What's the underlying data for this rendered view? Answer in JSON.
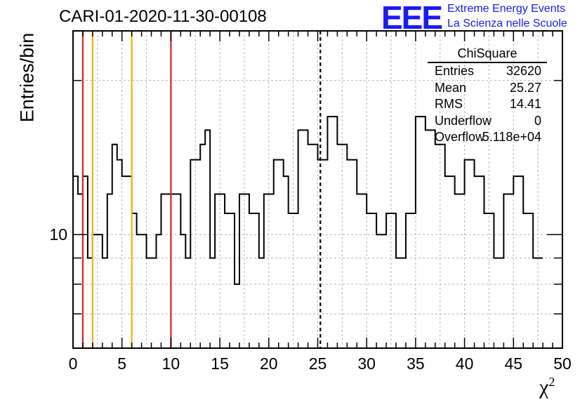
{
  "title": "CARI-01-2020-11-30-00108",
  "logo": {
    "mark": "EEE",
    "line1": "Extreme Energy Events",
    "line2": "La Scienza nelle Scuole"
  },
  "stats": {
    "title": "ChiSquare",
    "rows": [
      {
        "key": "Entries",
        "value": "32620"
      },
      {
        "key": "Mean",
        "value": "25.27"
      },
      {
        "key": "RMS",
        "value": "14.41"
      },
      {
        "key": "Underflow",
        "value": "0"
      },
      {
        "key": "Overflow",
        "value": "5.118e+04"
      }
    ]
  },
  "chart_data": {
    "type": "histogram",
    "xlabel": "χ²",
    "ylabel": "Entries/bin",
    "xlim": [
      0,
      50
    ],
    "ylim": [
      6,
      25
    ],
    "log_y": true,
    "grid": true,
    "bin_width": 0.5,
    "x_ticks": [
      "0",
      "5",
      "10",
      "15",
      "20",
      "25",
      "30",
      "35",
      "40",
      "45",
      "50"
    ],
    "y_tick_labels": [
      {
        "value": 10,
        "label": "10"
      }
    ],
    "values": [
      13,
      12,
      13,
      9,
      10,
      10,
      9,
      12,
      15,
      14,
      13,
      13,
      11,
      10,
      10,
      9,
      9,
      10,
      12,
      12,
      12,
      12,
      10,
      9,
      14,
      14,
      15,
      16,
      9,
      12,
      12,
      11,
      11,
      8,
      12,
      12,
      11,
      11,
      9,
      12,
      12,
      14,
      14,
      13,
      11,
      11,
      16,
      16,
      15,
      15,
      14,
      14,
      17,
      17,
      15,
      15,
      14,
      14,
      12,
      12,
      11,
      11,
      10,
      10,
      11,
      11,
      9,
      9,
      11,
      11,
      17,
      17,
      16,
      16,
      15,
      15,
      13,
      13,
      12,
      12,
      14,
      14,
      13,
      13,
      11,
      11,
      9,
      9,
      12,
      12,
      13,
      13,
      11,
      11,
      9,
      9
    ],
    "vertical_lines": [
      {
        "x": 1,
        "color": "#e02020",
        "style": "solid"
      },
      {
        "x": 2,
        "color": "#f0b400",
        "style": "solid"
      },
      {
        "x": 6,
        "color": "#f0b400",
        "style": "solid"
      },
      {
        "x": 10,
        "color": "#e02020",
        "style": "solid"
      },
      {
        "x": 25.27,
        "color": "#000000",
        "style": "dashed"
      }
    ],
    "line_color": "#000000"
  }
}
